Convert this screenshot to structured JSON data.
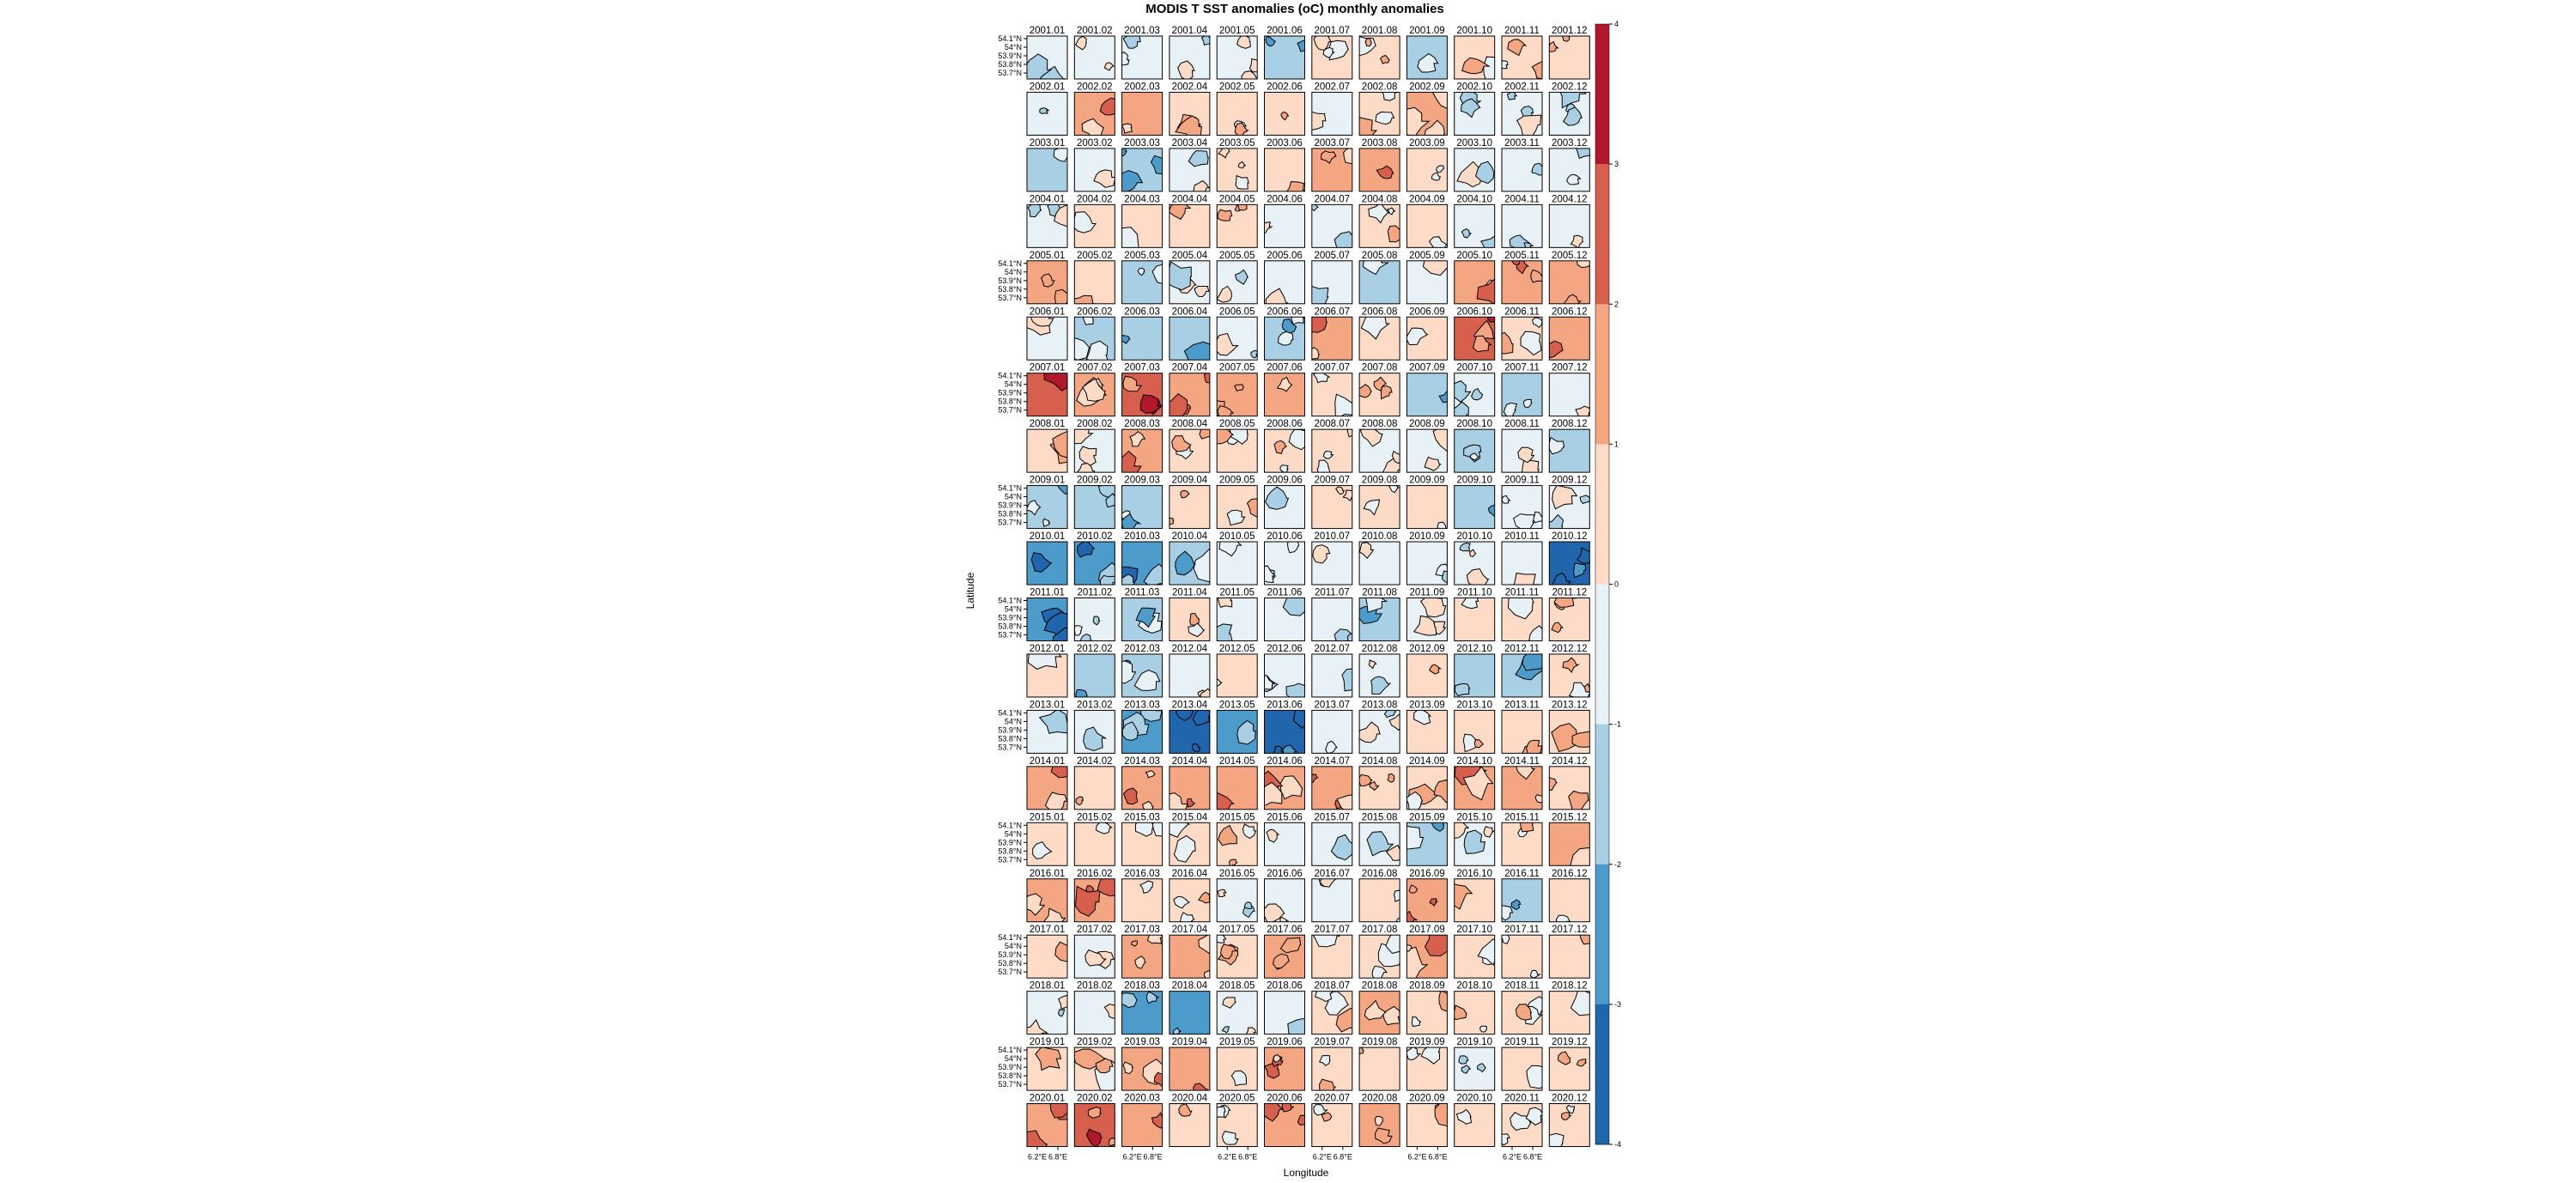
{
  "chart_data": {
    "type": "heatmap",
    "title": "MODIS T SST anomalies (oC) monthly anomalies",
    "xlabel": "Longitude",
    "ylabel": "Latitude",
    "x_tick_labels": [
      "6.2°E",
      "6.8°E"
    ],
    "y_tick_labels": [
      "54.1°N",
      "54°N",
      "53.9°N",
      "53.8°N",
      "53.7°N"
    ],
    "colorbar": {
      "range": [
        -4,
        4
      ],
      "tick_labels": [
        "4",
        "3",
        "2",
        "1",
        "0",
        "-1",
        "-2",
        "-3",
        "-4"
      ],
      "colors": [
        "#b2182b",
        "#d6604d",
        "#f4a582",
        "#fddbc7",
        "#e8f1f6",
        "#a8cfe4",
        "#4d9bcb",
        "#2166ac"
      ]
    },
    "years": [
      "2001",
      "2002",
      "2003",
      "2004",
      "2005",
      "2006",
      "2007",
      "2008",
      "2009",
      "2010",
      "2011",
      "2012",
      "2013",
      "2014",
      "2015",
      "2016",
      "2017",
      "2018",
      "2019",
      "2020"
    ],
    "months": [
      "01",
      "02",
      "03",
      "04",
      "05",
      "06",
      "07",
      "08",
      "09",
      "10",
      "11",
      "12"
    ],
    "grid": false,
    "mean_anomaly": [
      [
        -0.4,
        -0.3,
        -0.8,
        -0.3,
        -0.2,
        -1.3,
        0.2,
        0.3,
        -1.6,
        0.4,
        0.3,
        0.3
      ],
      [
        -0.3,
        1.4,
        1.4,
        0.4,
        0.3,
        0.3,
        -0.3,
        0.4,
        1.3,
        -0.6,
        -0.6,
        -0.4
      ],
      [
        -1.4,
        -0.6,
        -1.3,
        -0.4,
        0.2,
        0.8,
        1.2,
        1.4,
        0.4,
        -0.5,
        -0.4,
        -0.8
      ],
      [
        -0.2,
        0.4,
        0.5,
        0.5,
        0.3,
        -0.4,
        -0.6,
        0.4,
        0.3,
        -0.4,
        -0.8,
        -0.3
      ],
      [
        1.2,
        0.4,
        -1.4,
        -0.7,
        -0.6,
        -0.6,
        -0.5,
        -1.3,
        -0.4,
        1.3,
        1.9,
        1.2
      ],
      [
        -0.6,
        -1.4,
        -1.8,
        -1.3,
        -0.6,
        -1.2,
        1.3,
        0.5,
        0.5,
        2.5,
        0.4,
        1.6
      ],
      [
        2.5,
        1.7,
        2.3,
        1.6,
        1.1,
        1.2,
        0.4,
        0.3,
        -1.2,
        -0.8,
        -1.3,
        -0.4
      ],
      [
        0.4,
        -0.6,
        1.4,
        0.5,
        0.4,
        0.3,
        0.2,
        -0.3,
        -0.6,
        -1.1,
        -0.6,
        -1.5
      ],
      [
        -1.6,
        -1.8,
        -1.2,
        0.3,
        0.3,
        -0.4,
        0.2,
        0.2,
        0.5,
        -1.3,
        -0.8,
        -0.6
      ],
      [
        -2.6,
        -2.6,
        -2.4,
        -1.3,
        -0.8,
        -0.9,
        -0.6,
        -0.4,
        -0.8,
        -0.3,
        -0.6,
        -3.0
      ],
      [
        -2.4,
        -0.8,
        -1.3,
        0.3,
        -0.4,
        -0.6,
        -0.8,
        -1.3,
        -0.6,
        0.4,
        0.4,
        0.3
      ],
      [
        0.4,
        -1.2,
        -1.3,
        -0.3,
        0.8,
        -0.8,
        -0.7,
        -0.6,
        0.3,
        -1.0,
        -1.3,
        0.3
      ],
      [
        -0.4,
        -0.7,
        -2.4,
        -3.4,
        -2.6,
        -3.3,
        -0.8,
        -0.3,
        0.3,
        0.4,
        0.6,
        0.4
      ],
      [
        1.3,
        0.4,
        1.3,
        1.5,
        1.4,
        1.6,
        1.5,
        0.3,
        0.4,
        1.3,
        1.7,
        0.4
      ],
      [
        0.4,
        0.4,
        0.4,
        0.4,
        0.3,
        -0.6,
        -0.7,
        -0.4,
        -1.4,
        -0.6,
        0.8,
        1.3
      ],
      [
        1.8,
        1.3,
        0.8,
        0.3,
        -0.3,
        -0.3,
        -0.4,
        0.3,
        2.0,
        0.4,
        -1.3,
        0.3
      ],
      [
        0.3,
        -0.3,
        1.2,
        1.4,
        0.8,
        1.2,
        0.4,
        0.4,
        1.3,
        0.4,
        0.3,
        0.4
      ],
      [
        -0.4,
        -0.5,
        -2.4,
        -2.6,
        -0.3,
        -0.6,
        0.6,
        1.3,
        0.4,
        0.4,
        0.4,
        0.5
      ],
      [
        0.4,
        0.4,
        1.6,
        1.3,
        0.4,
        1.3,
        0.3,
        0.4,
        0.3,
        -0.4,
        0.4,
        0.3
      ],
      [
        1.3,
        2.3,
        1.8,
        0.4,
        0.3,
        1.7,
        0.3,
        1.2,
        0.4,
        0.8,
        0.8,
        0.4
      ]
    ]
  }
}
